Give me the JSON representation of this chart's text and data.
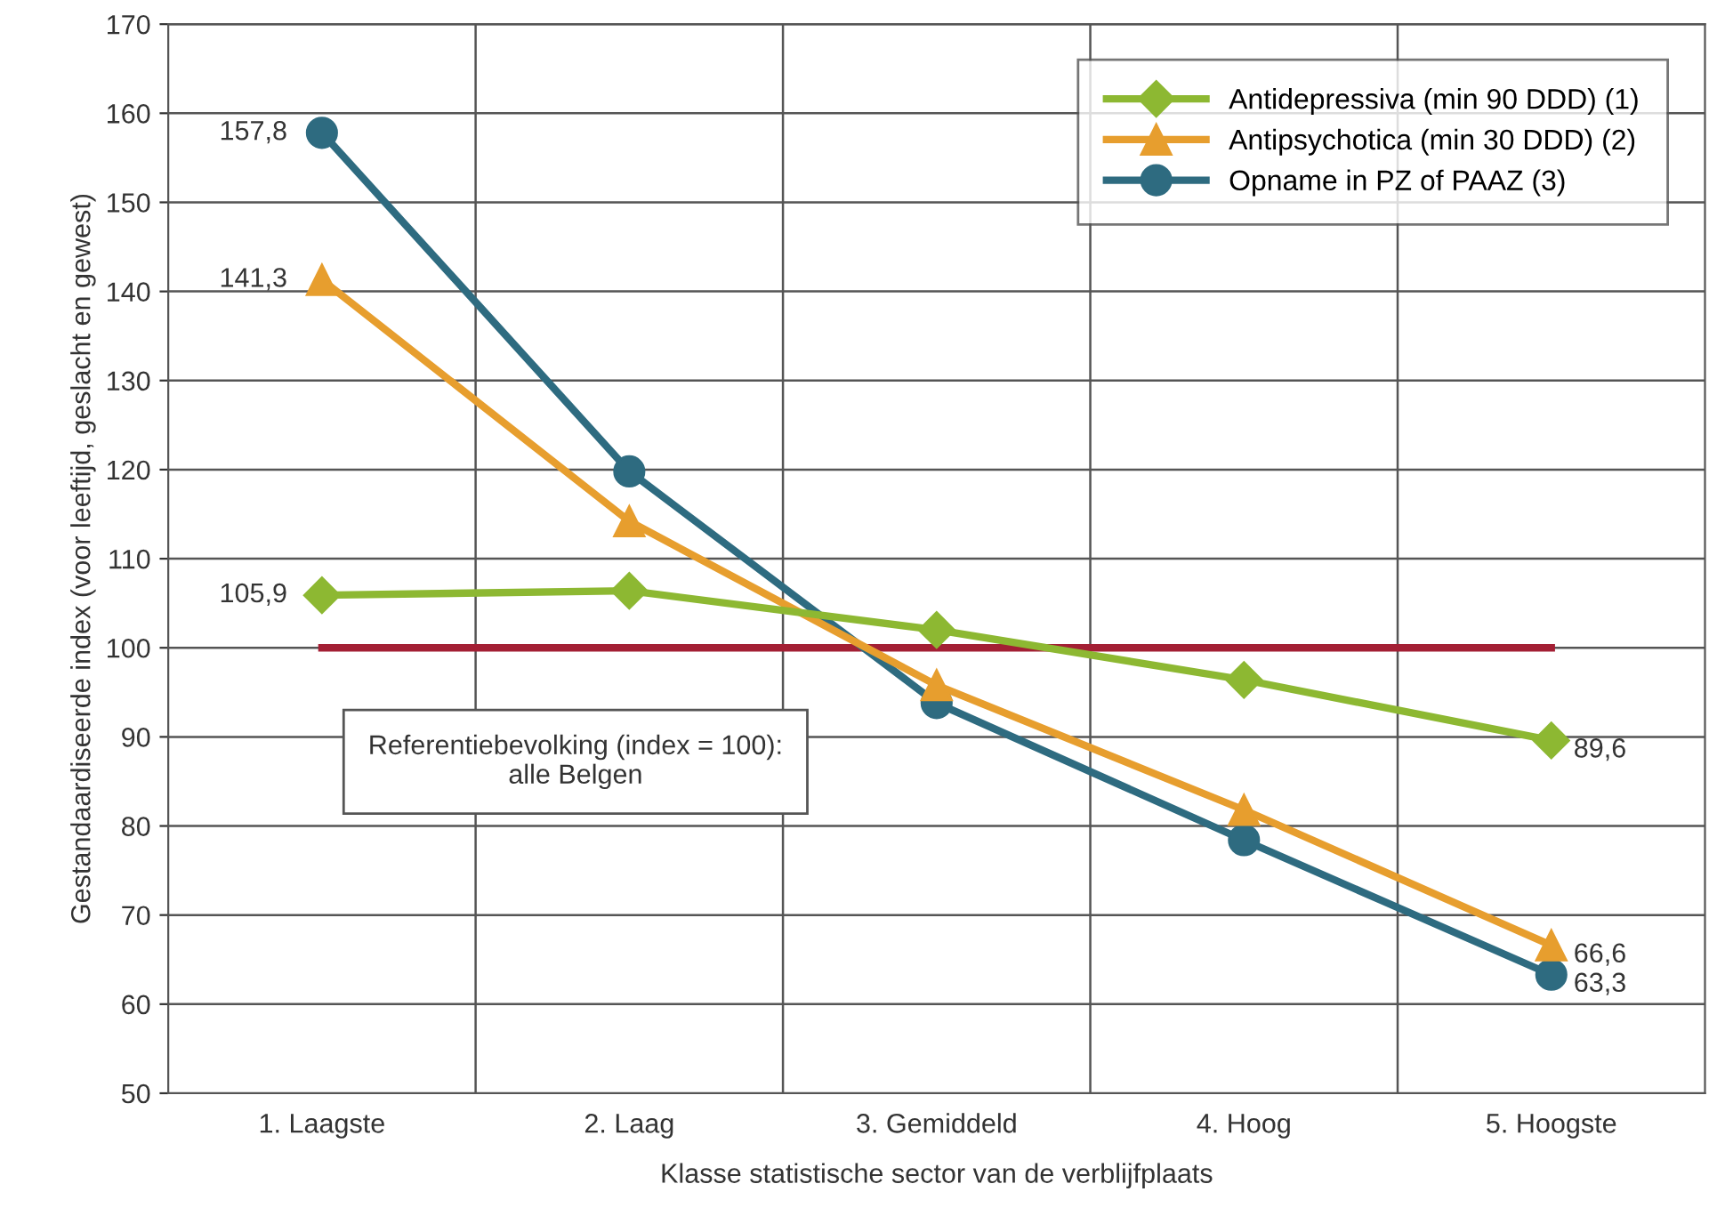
{
  "chart_data": {
    "type": "line",
    "xlabel": "Klasse statistische sector van de verblijfplaats",
    "ylabel": "Gestandaardiseerde index (voor leeftijd, geslacht en gewest)",
    "categories": [
      "1. Laagste",
      "2. Laag",
      "3. Gemiddeld",
      "4. Hoog",
      "5. Hoogste"
    ],
    "series": [
      {
        "name": "Antidepressiva (min 90 DDD) (1)",
        "color": "#8db832",
        "marker": "diamond",
        "values": [
          105.9,
          106.4,
          102.0,
          96.4,
          89.6
        ],
        "value_labels": [
          "105,9",
          null,
          null,
          null,
          "89,6"
        ]
      },
      {
        "name": "Antipsychotica (min 30 DDD) (2)",
        "color": "#e79e2e",
        "marker": "triangle",
        "values": [
          141.3,
          114.2,
          95.8,
          81.8,
          66.6
        ],
        "value_labels": [
          "141,3",
          null,
          null,
          null,
          "66,6"
        ]
      },
      {
        "name": "Opname in PZ of PAAZ (3)",
        "color": "#2e6b80",
        "marker": "circle",
        "values": [
          157.8,
          119.8,
          93.8,
          78.4,
          63.3
        ],
        "value_labels": [
          "157,8",
          null,
          null,
          null,
          "63,3"
        ]
      }
    ],
    "ylim": [
      50,
      170
    ],
    "yticks": [
      50,
      60,
      70,
      80,
      90,
      100,
      110,
      120,
      130,
      140,
      150,
      160,
      170
    ],
    "ref_lines": [
      {
        "axis": "y",
        "value": 100,
        "color": "#a31f34"
      }
    ],
    "annotations": [
      "Referentiebevolking (index = 100):\nalle Belgen"
    ],
    "grid": true,
    "legend": "top right",
    "line_style": "solid"
  }
}
